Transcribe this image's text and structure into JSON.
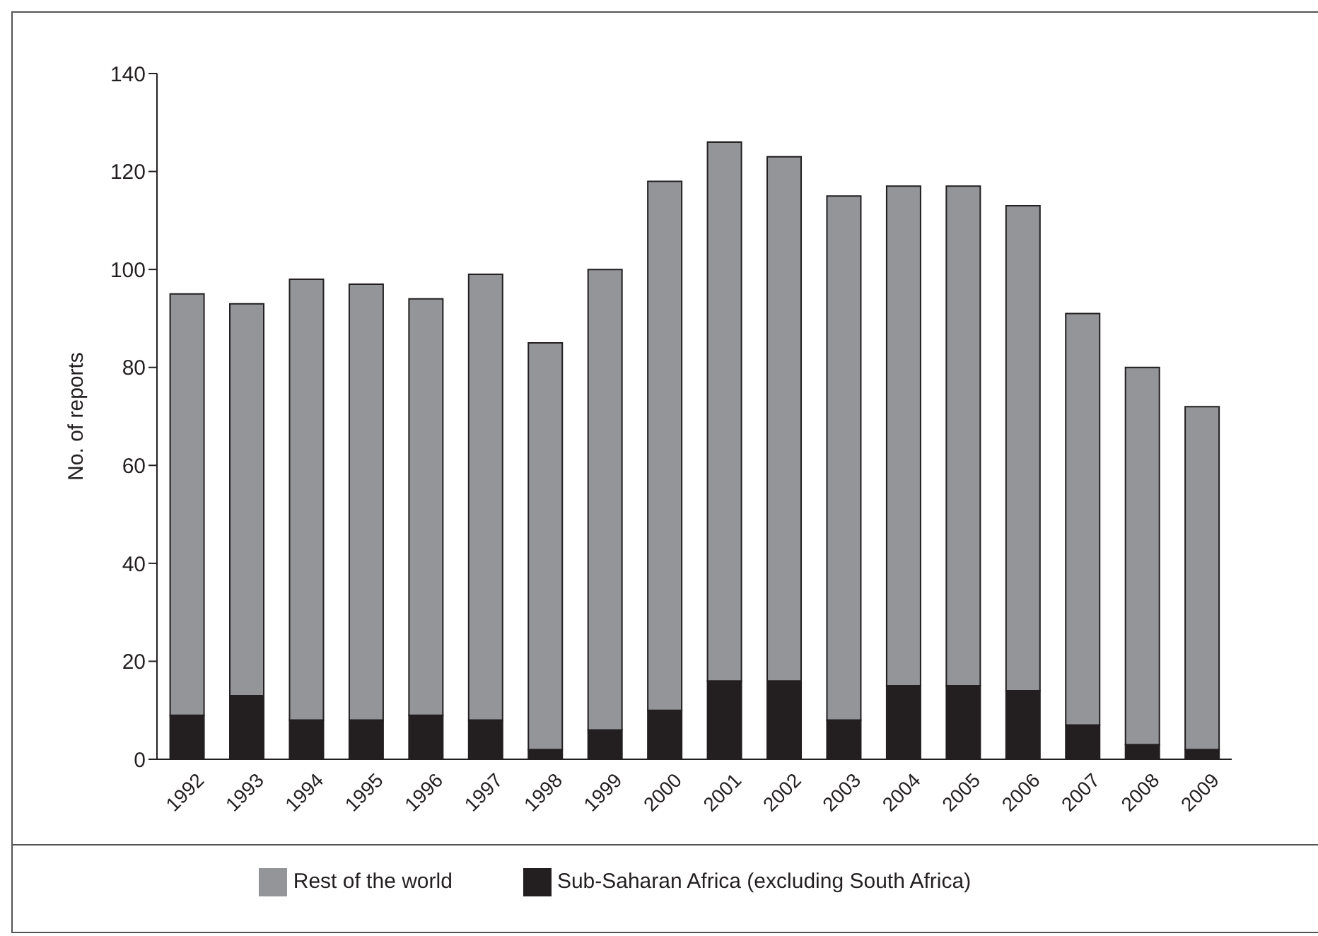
{
  "chart_data": {
    "type": "bar",
    "stacked": true,
    "ylabel": "No. of reports",
    "categories": [
      "1992",
      "1993",
      "1994",
      "1995",
      "1996",
      "1997",
      "1998",
      "1999",
      "2000",
      "2001",
      "2002",
      "2003",
      "2004",
      "2005",
      "2006",
      "2007",
      "2008",
      "2009"
    ],
    "series": [
      {
        "name": "Sub-Saharan Africa (excluding South Africa)",
        "color": "#231f20",
        "values": [
          9,
          13,
          8,
          8,
          9,
          8,
          2,
          6,
          10,
          16,
          16,
          8,
          15,
          15,
          14,
          7,
          3,
          2
        ]
      },
      {
        "name": "Rest of the world",
        "color": "#939598",
        "values": [
          86,
          80,
          90,
          89,
          85,
          91,
          83,
          94,
          108,
          110,
          107,
          107,
          102,
          102,
          99,
          84,
          77,
          70
        ]
      }
    ],
    "ylim": [
      0,
      140
    ],
    "yticks": [
      0,
      20,
      40,
      60,
      80,
      100,
      120,
      140
    ],
    "grid": false,
    "legend": "bottom"
  }
}
